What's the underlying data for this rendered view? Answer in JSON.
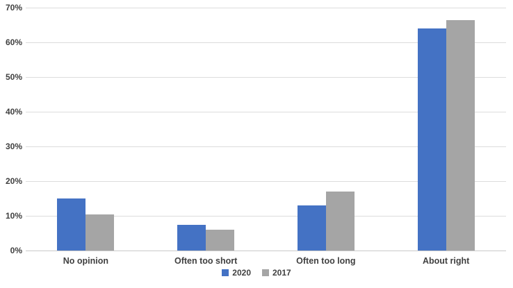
{
  "chart_data": {
    "type": "bar",
    "title": "",
    "xlabel": "",
    "ylabel": "",
    "categories": [
      "No opinion",
      "Often too short",
      "Often too long",
      "About right"
    ],
    "series": [
      {
        "name": "2020",
        "color": "#4472C4",
        "values": [
          15,
          7.5,
          13,
          64
        ]
      },
      {
        "name": "2017",
        "color": "#A5A5A5",
        "values": [
          10.5,
          6,
          17,
          66.5
        ]
      }
    ],
    "ylim": [
      0,
      70
    ],
    "ytick_step": 10,
    "ytick_labels": [
      "0%",
      "10%",
      "20%",
      "30%",
      "40%",
      "50%",
      "60%",
      "70%"
    ],
    "grid": true,
    "legend_position": "bottom-center"
  },
  "colors": {
    "background": "#FFFFFF",
    "gridline": "#DCDCDC",
    "axis_line": "#C9C9C9",
    "axis_text": "#404040"
  }
}
